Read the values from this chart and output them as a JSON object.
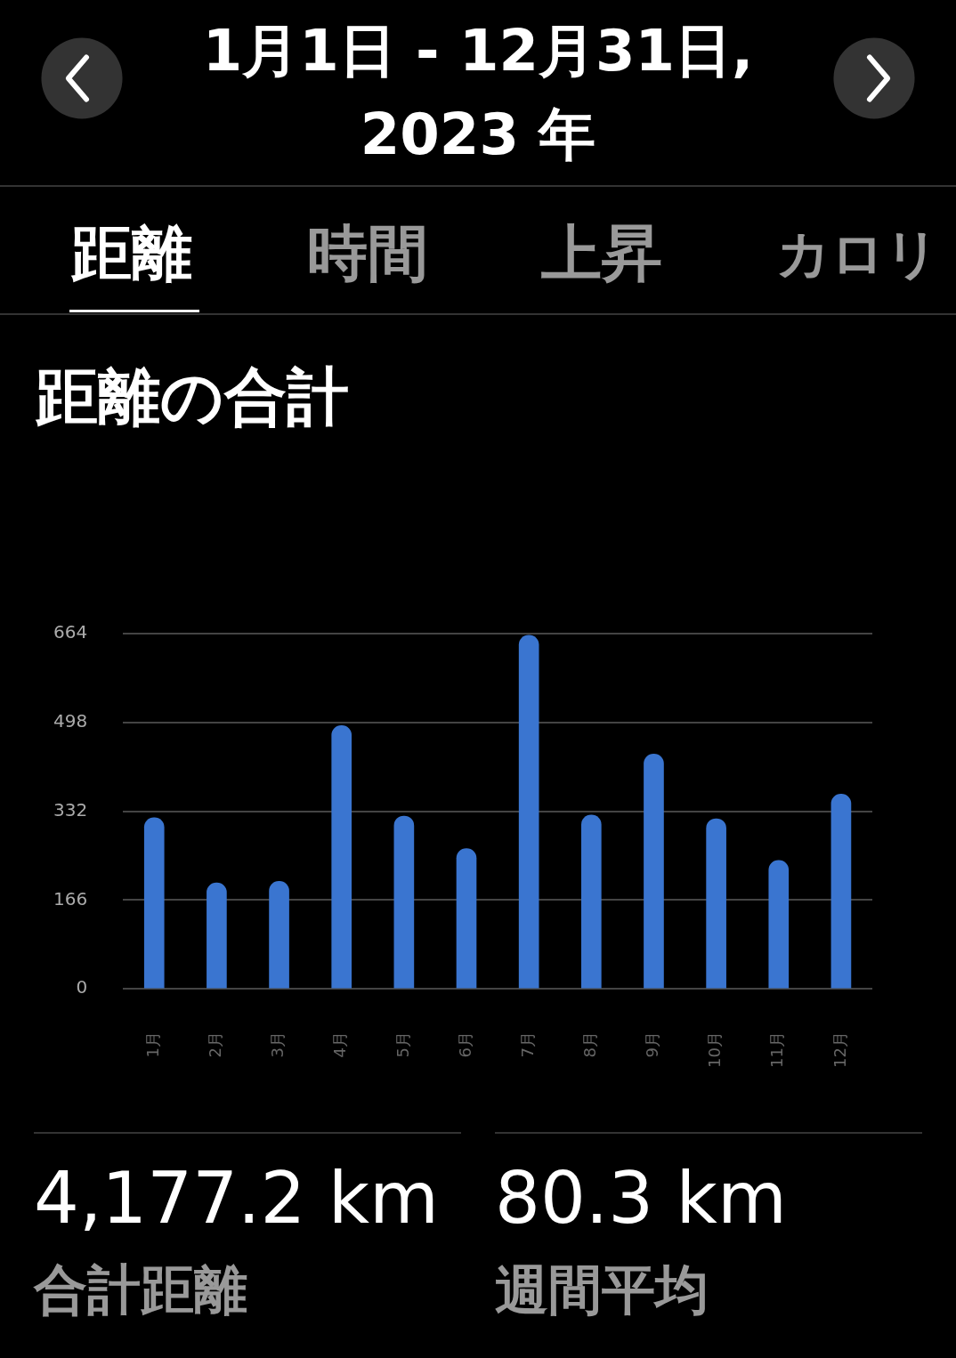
{
  "chart_data": {
    "type": "bar",
    "title": "距離の合計",
    "annotations": [
      "1月1日 - 12月31日, 2023 年",
      "距離",
      "時間",
      "上昇",
      "カロリ",
      "4,177.2 km",
      "合計距離",
      "80.3 km",
      "週間平均"
    ],
    "categories": [
      "1月",
      "2月",
      "3月",
      "4月",
      "5月",
      "6月",
      "7月",
      "8月",
      "9月",
      "10月",
      "11月",
      "12月"
    ],
    "values": [
      320,
      198,
      201,
      492,
      323,
      262,
      661,
      325,
      439,
      318,
      240,
      364
    ],
    "color": "#3a75d0",
    "ylim": [
      0,
      664
    ],
    "yticks": [
      0,
      166,
      332,
      498,
      664
    ],
    "grid": "y",
    "legend": false
  }
}
